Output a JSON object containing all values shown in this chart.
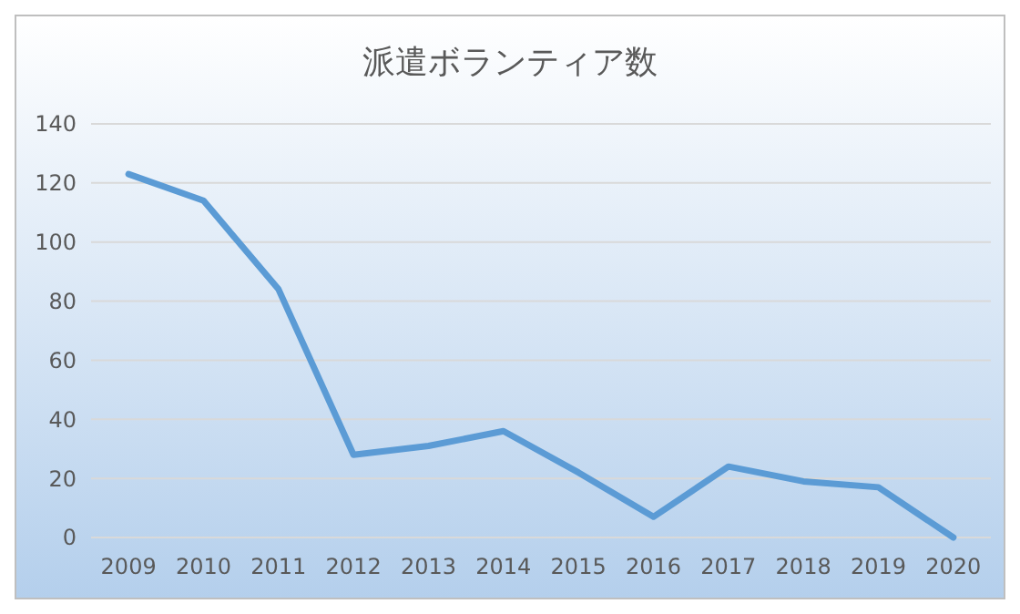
{
  "chart_data": {
    "type": "line",
    "title": "派遣ボランティア数",
    "categories": [
      "2009",
      "2010",
      "2011",
      "2012",
      "2013",
      "2014",
      "2015",
      "2016",
      "2017",
      "2018",
      "2019",
      "2020"
    ],
    "series": [
      {
        "color": "#5b9bd5",
        "values": [
          123,
          114,
          84,
          28,
          31,
          36,
          22,
          7,
          24,
          19,
          17,
          0
        ]
      }
    ],
    "ylim": [
      0,
      140
    ],
    "yticks": [
      0,
      20,
      40,
      60,
      80,
      100,
      120,
      140
    ],
    "grid": "y",
    "marker": "none",
    "line_style": "solid"
  }
}
